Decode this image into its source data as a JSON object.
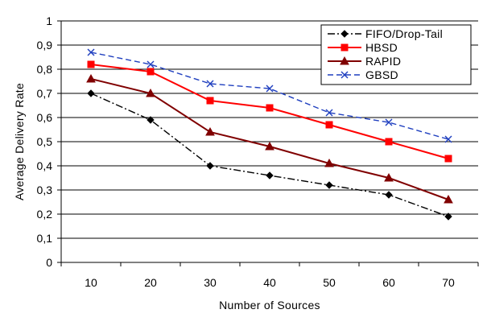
{
  "chart_data": {
    "type": "line",
    "xlabel": "Number of Sources",
    "ylabel": "Average Delivery Rate",
    "categories": [
      "10",
      "20",
      "30",
      "40",
      "50",
      "60",
      "70"
    ],
    "ylim": [
      0,
      1
    ],
    "yticks": [
      "0",
      "0,1",
      "0,2",
      "0,3",
      "0,4",
      "0,5",
      "0,6",
      "0,7",
      "0,8",
      "0,9",
      "1"
    ],
    "grid": true,
    "legend_position": "top-right",
    "series": [
      {
        "name": "FIFO/Drop-Tail",
        "values": [
          0.7,
          0.59,
          0.4,
          0.36,
          0.32,
          0.28,
          0.19
        ],
        "color": "#000000",
        "marker": "diamond",
        "dash": "dash-dot"
      },
      {
        "name": "HBSD",
        "values": [
          0.82,
          0.79,
          0.67,
          0.64,
          0.57,
          0.5,
          0.43
        ],
        "color": "#ff0000",
        "marker": "square",
        "dash": "solid"
      },
      {
        "name": "RAPID",
        "values": [
          0.76,
          0.7,
          0.54,
          0.48,
          0.41,
          0.35,
          0.26
        ],
        "color": "#800000",
        "marker": "triangle",
        "dash": "solid"
      },
      {
        "name": "GBSD",
        "values": [
          0.87,
          0.82,
          0.74,
          0.72,
          0.62,
          0.58,
          0.51
        ],
        "color": "#1f3fbf",
        "marker": "x",
        "dash": "dashed"
      }
    ]
  }
}
